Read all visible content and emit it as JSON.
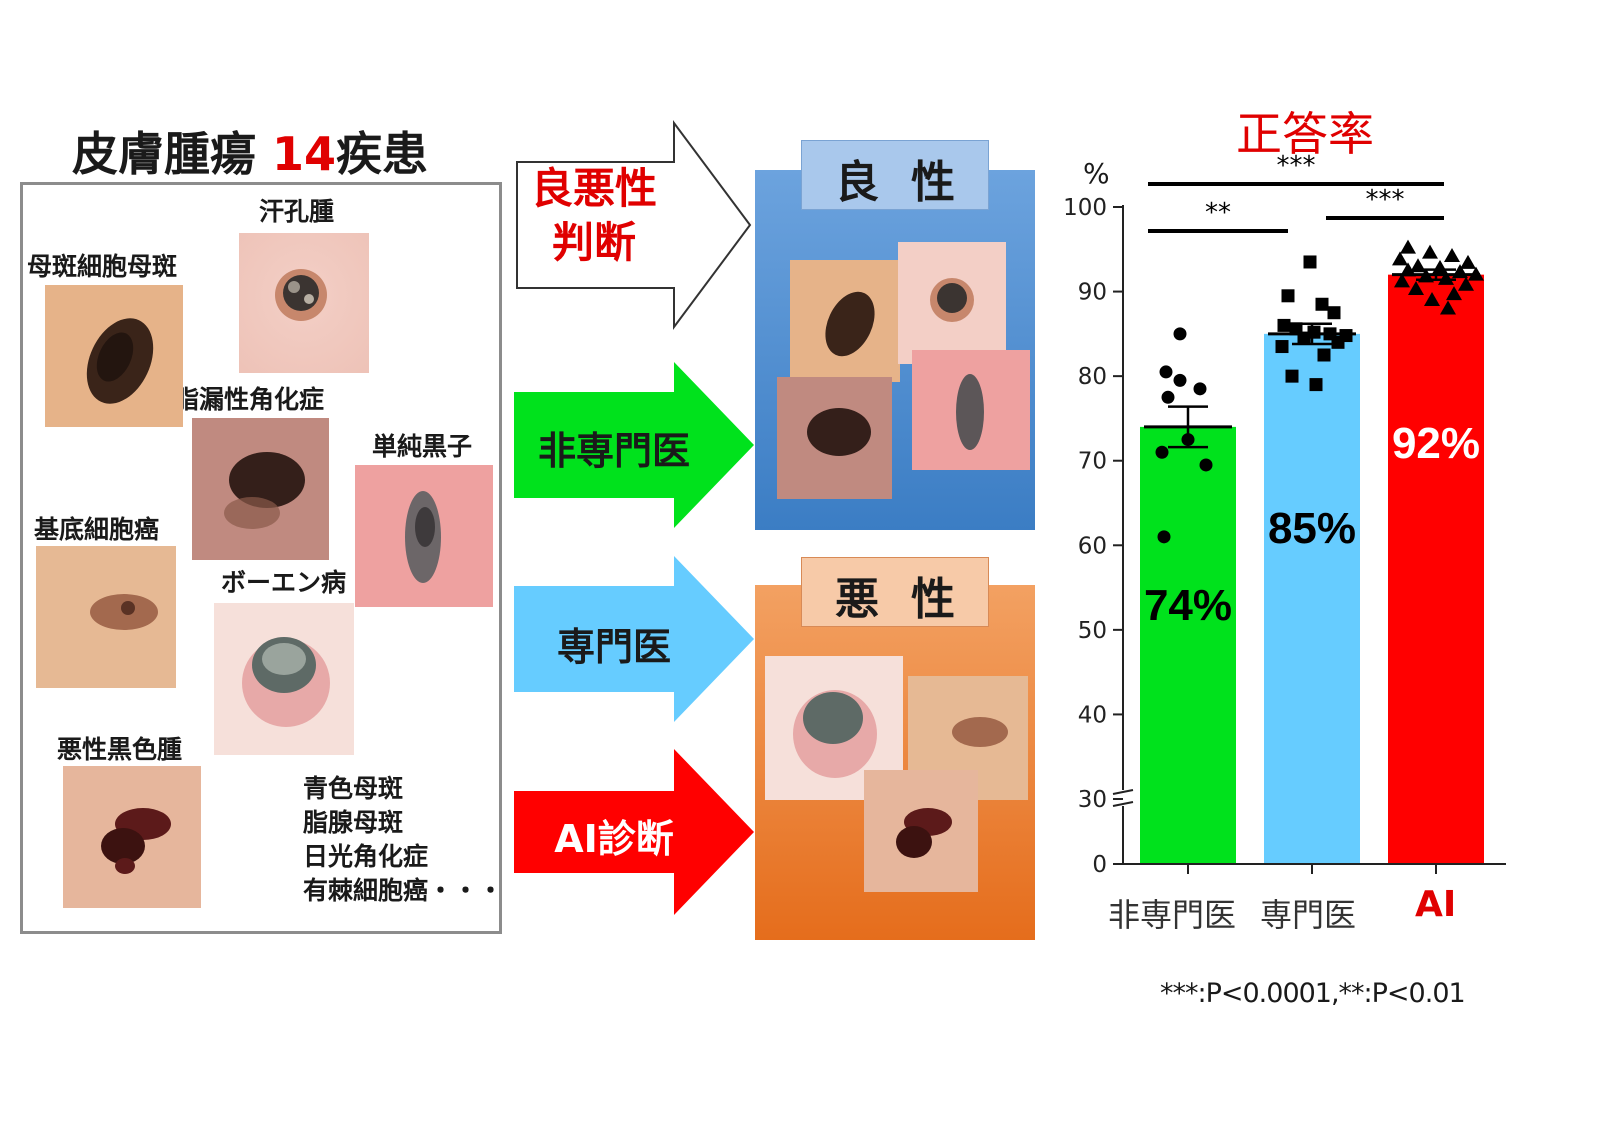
{
  "left": {
    "title_main": "皮膚腫瘍",
    "title_num": "14",
    "title_suffix": "疾患",
    "labels": {
      "eccrine": "汗孔腫",
      "nevus": "母斑細胞母斑",
      "seborrheic": "脂漏性角化症",
      "lentigo": "単純黒子",
      "bcc": "基底細胞癌",
      "bowen": "ボーエン病",
      "melanoma": "悪性黒色腫"
    },
    "more": [
      "青色母斑",
      "脂腺母斑",
      "日光角化症",
      "有棘細胞癌・・・"
    ]
  },
  "arrows": {
    "judge": [
      "良悪性",
      "判断"
    ],
    "nonspecialist": "非専門医",
    "specialist": "専門医",
    "ai": "AI診断"
  },
  "results": {
    "benign": "良性",
    "malignant": "悪性"
  },
  "colors": {
    "red": "#e00000",
    "green": "#00e21c",
    "lightblue": "#66ccff",
    "ai_red": "#ff0000",
    "benign_box": "#4a8fd4",
    "malignant_box": "#ec7d31"
  },
  "chart_data": {
    "type": "bar",
    "title": "正答率",
    "ylabel": "%",
    "categories": [
      "非専門医",
      "専門医",
      "AI"
    ],
    "values": [
      74,
      85,
      92
    ],
    "value_labels": [
      "74%",
      "85%",
      "92%"
    ],
    "bar_colors": [
      "#00e21c",
      "#66ccff",
      "#ff0000"
    ],
    "error": [
      2.4,
      1.2,
      0.6
    ],
    "ylim": [
      0,
      100
    ],
    "y_break": [
      0,
      30
    ],
    "yticks": [
      0,
      30,
      40,
      50,
      60,
      70,
      80,
      90,
      100
    ],
    "points": [
      {
        "marker": "circle",
        "values": [
          85,
          80.5,
          79.5,
          78.5,
          77.5,
          72.5,
          71,
          69.5,
          61
        ]
      },
      {
        "marker": "square",
        "values": [
          93.5,
          89.5,
          88.5,
          87.5,
          86,
          85.6,
          85.2,
          85,
          84.8,
          84.5,
          84,
          83.5,
          82.5,
          80,
          79
        ]
      },
      {
        "marker": "triangle",
        "values": [
          95.2,
          94.6,
          94.2,
          93.8,
          93.4,
          93,
          92.8,
          92.5,
          92.3,
          92,
          91.8,
          91.5,
          91.2,
          90.8,
          90.3,
          89.7,
          89,
          88
        ]
      }
    ],
    "significance": [
      {
        "from": "非専門医",
        "to": "AI",
        "label": "***"
      },
      {
        "from": "非専門医",
        "to": "専門医",
        "label": "**"
      },
      {
        "from": "専門医",
        "to": "AI",
        "label": "***"
      }
    ],
    "note": "***:P<0.0001,**:P<0.01"
  }
}
